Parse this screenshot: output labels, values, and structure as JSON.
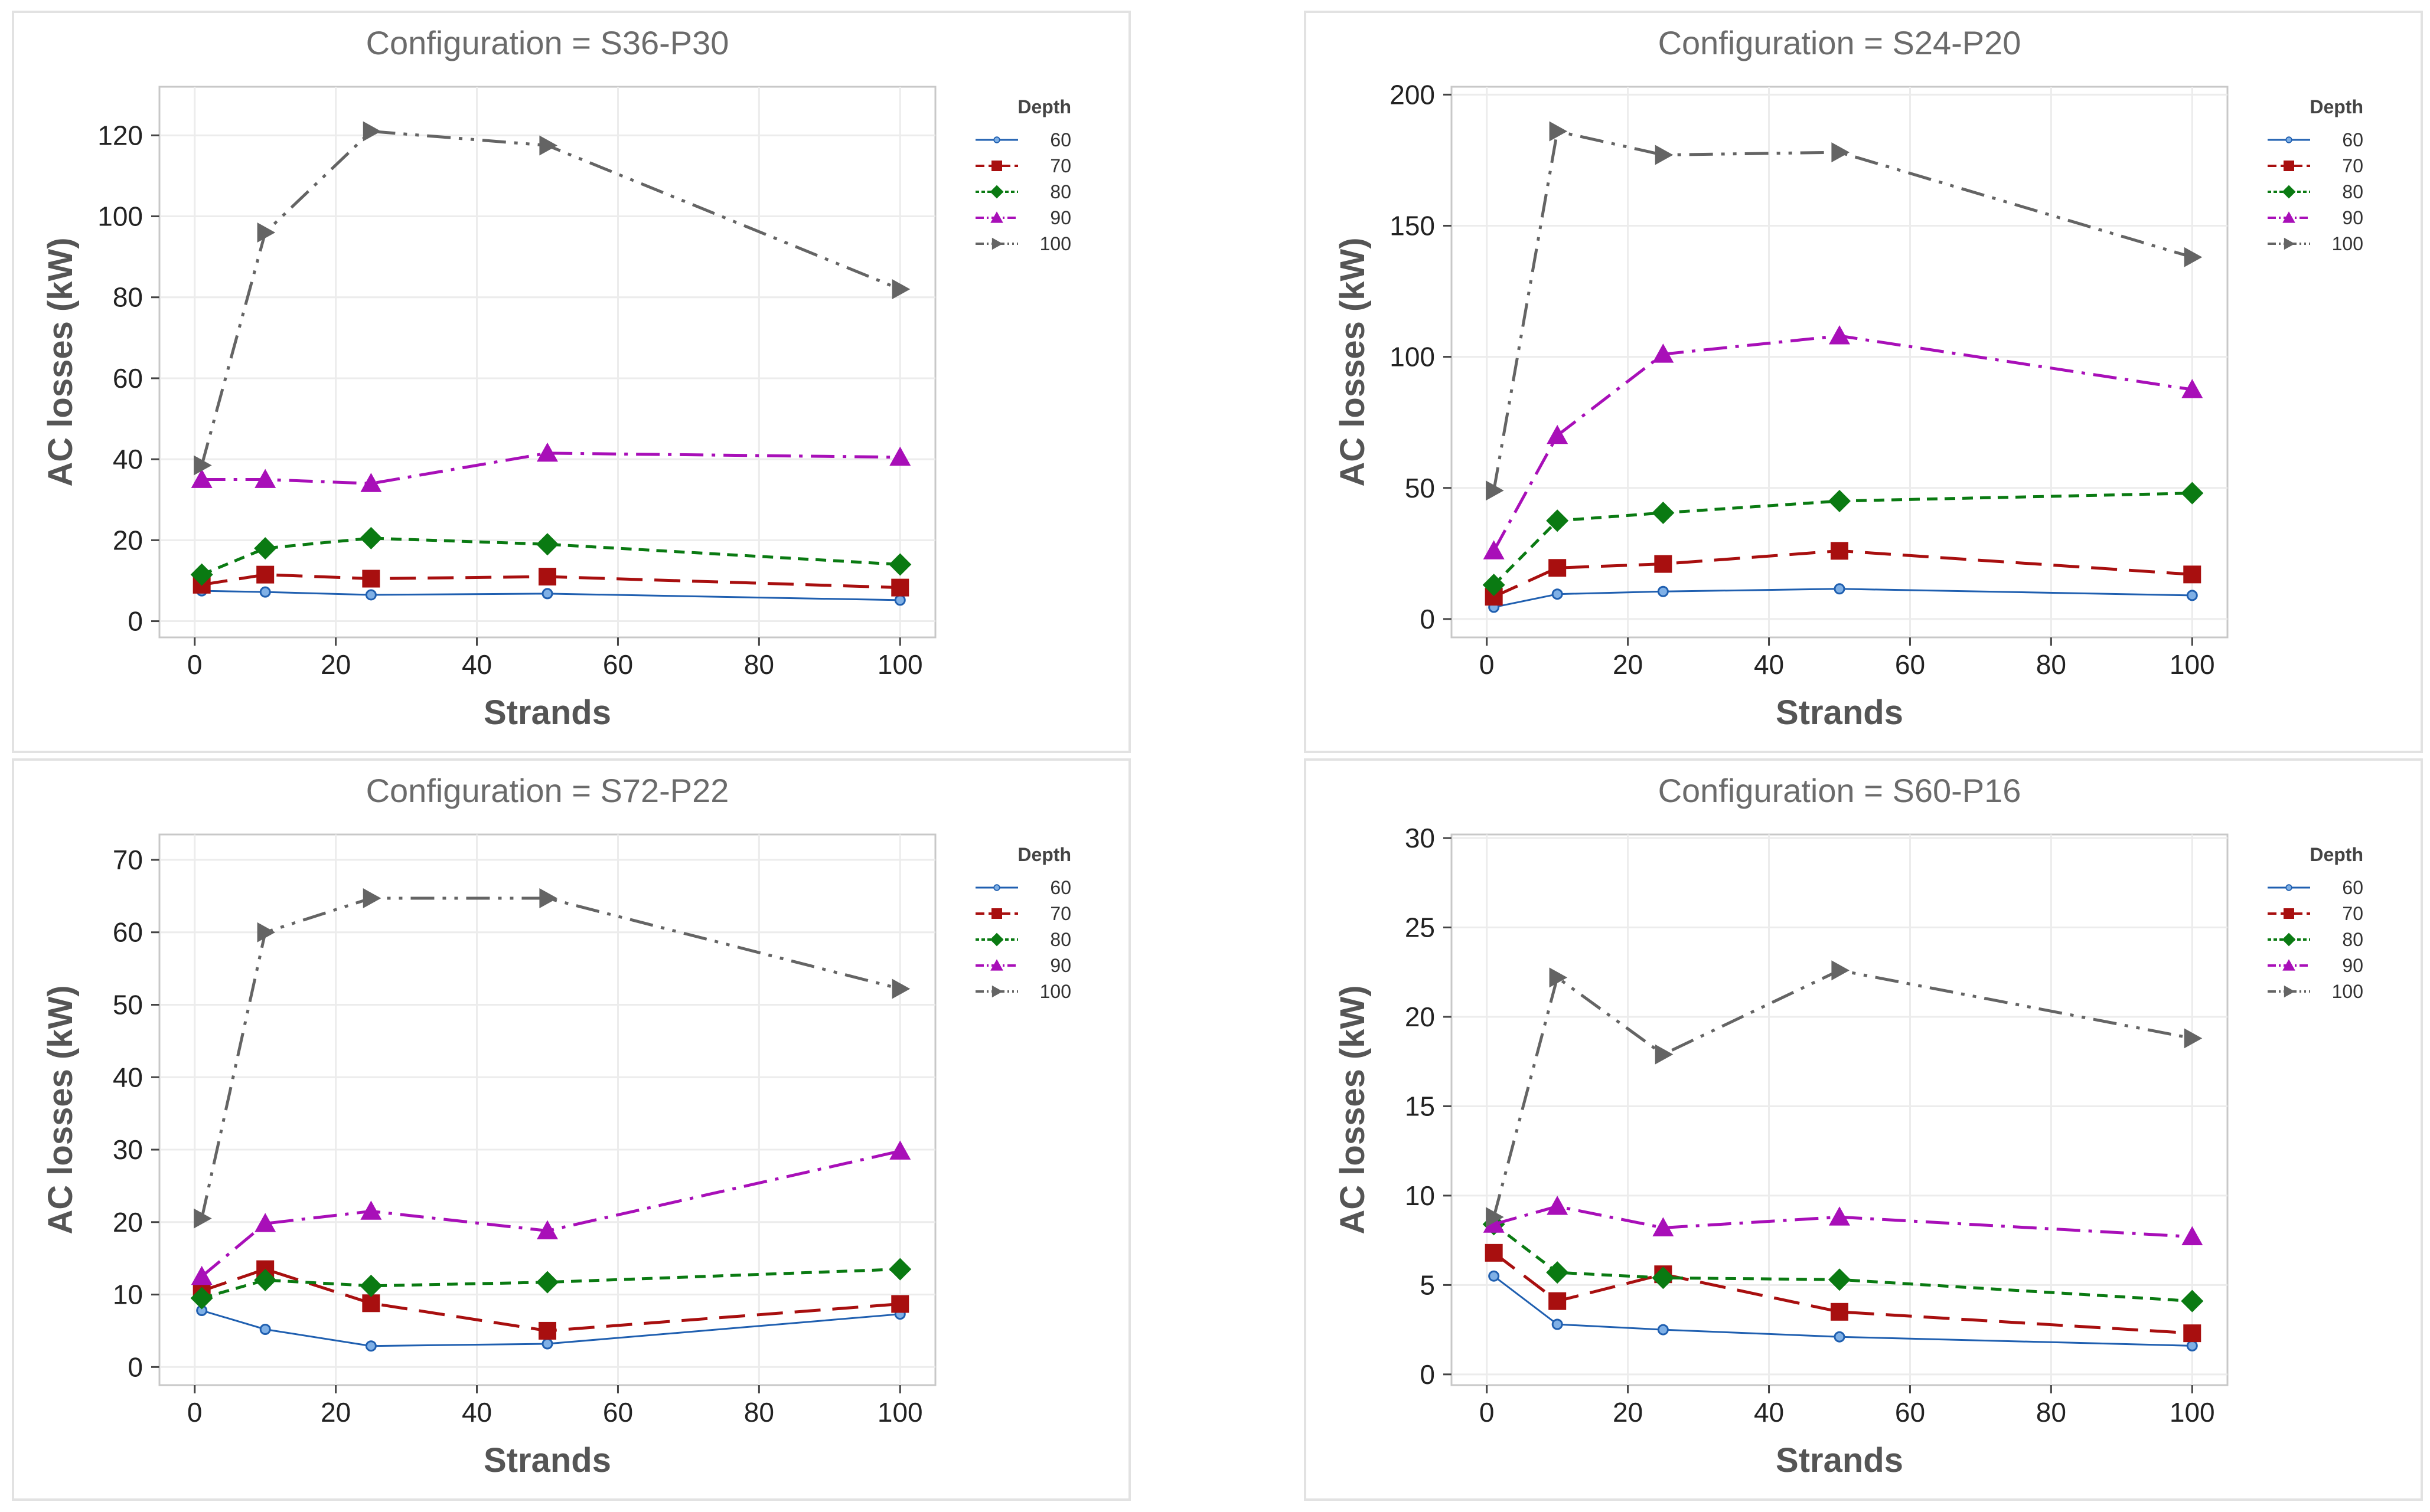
{
  "legend_title": "Depth",
  "xlabel": "Strands",
  "ylabel": "AC losses (kW)",
  "series_meta": [
    {
      "name": "60",
      "color": "#1f5fb0",
      "marker": "circle",
      "dash": ""
    },
    {
      "name": "70",
      "color": "#a80f0f",
      "marker": "square",
      "dash": "44,20"
    },
    {
      "name": "80",
      "color": "#0a7a12",
      "marker": "diamond",
      "dash": "18,12"
    },
    {
      "name": "90",
      "color": "#a80fb8",
      "marker": "triangle-up",
      "dash": "40,14,6,14"
    },
    {
      "name": "100",
      "color": "#646464",
      "marker": "triangle-right",
      "dash": "40,14,6,14,6,14"
    }
  ],
  "chart_data": [
    {
      "type": "line",
      "title": "Configuration = S36-P30",
      "x": [
        1,
        10,
        25,
        50,
        100
      ],
      "xlim": [
        -5,
        105
      ],
      "xticks": [
        0,
        20,
        40,
        60,
        80,
        100
      ],
      "ylim": [
        -4,
        132
      ],
      "yticks": [
        0,
        20,
        40,
        60,
        80,
        100,
        120
      ],
      "series": [
        {
          "name": "60",
          "values": [
            7.5,
            7.2,
            6.5,
            6.8,
            5.2
          ]
        },
        {
          "name": "70",
          "values": [
            9,
            11.5,
            10.5,
            11,
            8.3
          ]
        },
        {
          "name": "80",
          "values": [
            11.5,
            18,
            20.5,
            19,
            14
          ]
        },
        {
          "name": "90",
          "values": [
            35,
            35,
            34,
            41.5,
            40.5
          ]
        },
        {
          "name": "100",
          "values": [
            38.5,
            96,
            121,
            117.5,
            82
          ]
        }
      ]
    },
    {
      "type": "line",
      "title": "Configuration = S24-P20",
      "x": [
        1,
        10,
        25,
        50,
        100
      ],
      "xlim": [
        -5,
        105
      ],
      "xticks": [
        0,
        20,
        40,
        60,
        80,
        100
      ],
      "ylim": [
        -7,
        203
      ],
      "yticks": [
        0,
        50,
        100,
        150,
        200
      ],
      "series": [
        {
          "name": "60",
          "values": [
            4.5,
            9.5,
            10.5,
            11.5,
            9
          ]
        },
        {
          "name": "70",
          "values": [
            8.5,
            19.5,
            21,
            26,
            17
          ]
        },
        {
          "name": "80",
          "values": [
            13,
            37.5,
            40.5,
            45,
            48
          ]
        },
        {
          "name": "90",
          "values": [
            26,
            70,
            101,
            108,
            87.5
          ]
        },
        {
          "name": "100",
          "values": [
            49,
            186,
            177,
            178,
            138
          ]
        }
      ]
    },
    {
      "type": "line",
      "title": "Configuration = S72-P22",
      "x": [
        1,
        10,
        25,
        50,
        100
      ],
      "xlim": [
        -5,
        105
      ],
      "xticks": [
        0,
        20,
        40,
        60,
        80,
        100
      ],
      "ylim": [
        -2.5,
        73.5
      ],
      "yticks": [
        0,
        10,
        20,
        30,
        40,
        50,
        60,
        70
      ],
      "series": [
        {
          "name": "60",
          "values": [
            7.8,
            5.2,
            2.9,
            3.2,
            7.3
          ]
        },
        {
          "name": "70",
          "values": [
            10.5,
            13.5,
            8.8,
            5,
            8.7
          ]
        },
        {
          "name": "80",
          "values": [
            9.5,
            12,
            11.2,
            11.7,
            13.5
          ]
        },
        {
          "name": "90",
          "values": [
            12.5,
            19.8,
            21.5,
            18.8,
            29.8
          ]
        },
        {
          "name": "100",
          "values": [
            20.5,
            60,
            64.7,
            64.7,
            52.2
          ]
        }
      ]
    },
    {
      "type": "line",
      "title": "Configuration = S60-P16",
      "x": [
        1,
        10,
        25,
        50,
        100
      ],
      "xlim": [
        -5,
        105
      ],
      "xticks": [
        0,
        20,
        40,
        60,
        80,
        100
      ],
      "ylim": [
        -0.6,
        30.2
      ],
      "yticks": [
        0,
        5,
        10,
        15,
        20,
        25,
        30
      ],
      "series": [
        {
          "name": "60",
          "values": [
            5.5,
            2.8,
            2.5,
            2.1,
            1.6
          ]
        },
        {
          "name": "70",
          "values": [
            6.8,
            4.1,
            5.6,
            3.5,
            2.3
          ]
        },
        {
          "name": "80",
          "values": [
            8.4,
            5.7,
            5.4,
            5.3,
            4.1
          ]
        },
        {
          "name": "90",
          "values": [
            8.4,
            9.4,
            8.2,
            8.8,
            7.7
          ]
        },
        {
          "name": "100",
          "values": [
            8.8,
            22.2,
            17.9,
            22.6,
            18.8
          ]
        }
      ]
    }
  ]
}
